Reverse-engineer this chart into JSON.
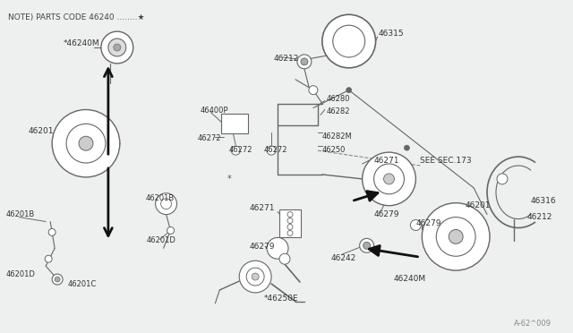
{
  "bg_color": "#eef0f0",
  "line_color": "#666666",
  "text_color": "#333333",
  "arrow_color": "#111111",
  "note_text": "NOTE) PARTS CODE 46240 ........*",
  "watermark": "A-62^009",
  "see_sec": "SEE SEC.173",
  "figsize": [
    6.4,
    3.72
  ],
  "dpi": 100
}
